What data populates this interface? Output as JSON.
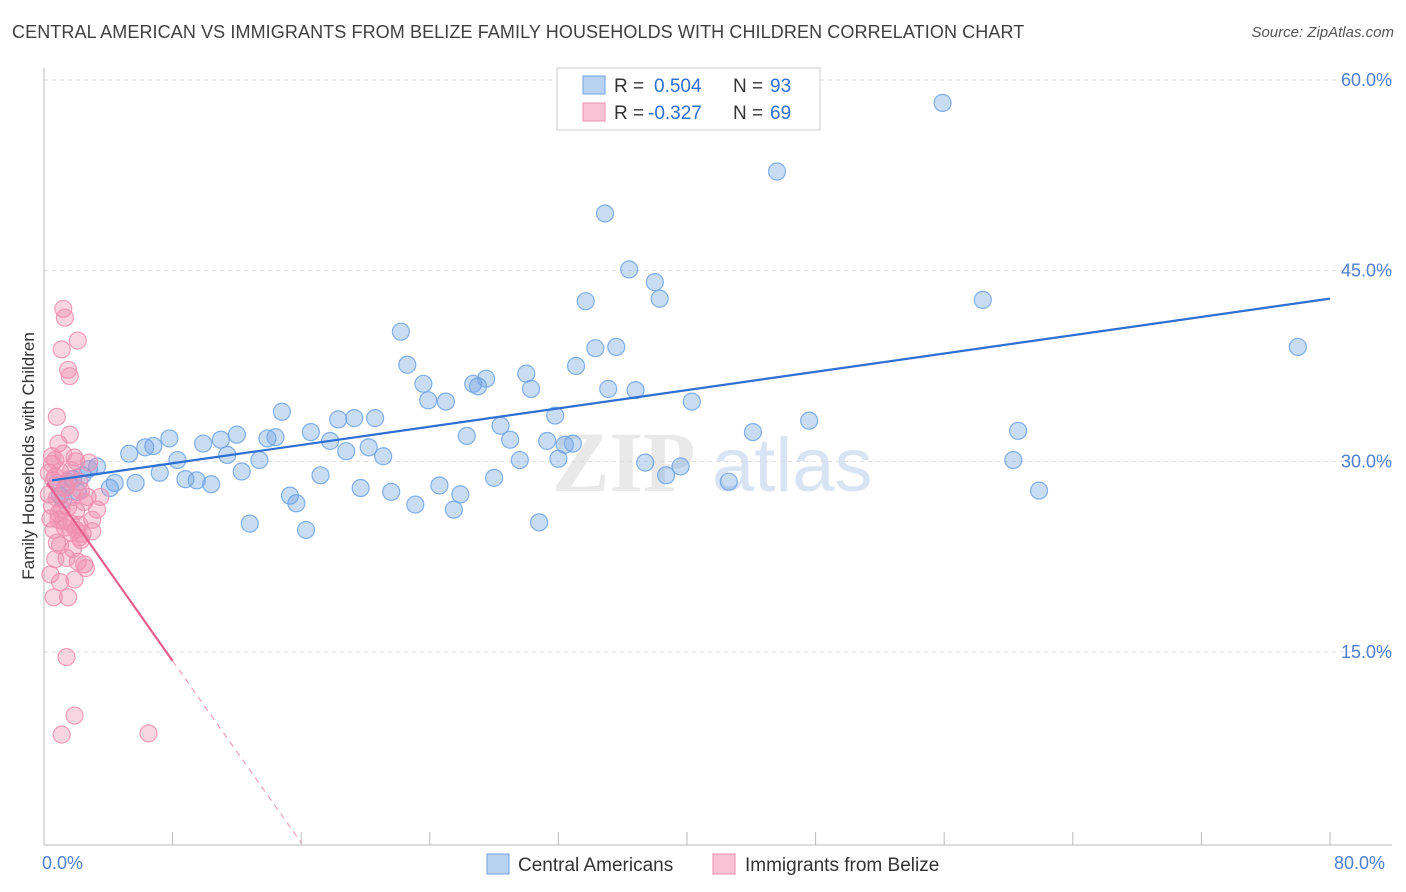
{
  "title": "CENTRAL AMERICAN VS IMMIGRANTS FROM BELIZE FAMILY HOUSEHOLDS WITH CHILDREN CORRELATION CHART",
  "source": "Source: ZipAtlas.com",
  "watermark": {
    "zip": "ZIP",
    "atlas": "atlas"
  },
  "colors": {
    "blue": "#6fa3e3",
    "blue_line": "#2f6fd3",
    "pink": "#f08fb0",
    "pink_line": "#e55f8c",
    "tick": "#4f7fd0",
    "grid": "#dddddd"
  },
  "chart_data": {
    "type": "scatter",
    "title": "CENTRAL AMERICAN VS IMMIGRANTS FROM BELIZE FAMILY HOUSEHOLDS WITH CHILDREN CORRELATION CHART",
    "xlabel": "",
    "ylabel": "Family Households with Children",
    "xlim": [
      0,
      80
    ],
    "ylim": [
      0,
      63
    ],
    "x_tick_labels": [
      "0.0%",
      "80.0%"
    ],
    "y_ticks": [
      15,
      30,
      45,
      60
    ],
    "y_tick_labels": [
      "15.0%",
      "30.0%",
      "45.0%",
      "60.0%"
    ],
    "grid": true,
    "legend": {
      "position": "top-center",
      "entries": [
        {
          "r_label": "R =",
          "r_value": "0.504",
          "n_label": "N =",
          "n_value": "93"
        },
        {
          "r_label": "R =",
          "r_value": "-0.327",
          "n_label": "N =",
          "n_value": "69"
        }
      ]
    },
    "bottom_legend": [
      "Central Americans",
      "Immigrants from Belize"
    ],
    "series": [
      {
        "name": "Central Americans",
        "trend": {
          "x": [
            0.5,
            80
          ],
          "y": [
            28.5,
            42.8
          ]
        },
        "points": [
          [
            0.8,
            28.3
          ],
          [
            1.0,
            27.3
          ],
          [
            1.2,
            27.0
          ],
          [
            1.5,
            28.4
          ],
          [
            1.8,
            28.6
          ],
          [
            2.1,
            27.6
          ],
          [
            2.4,
            28.9
          ],
          [
            2.8,
            29.4
          ],
          [
            3.3,
            29.6
          ],
          [
            4.1,
            27.9
          ],
          [
            4.4,
            28.3
          ],
          [
            5.3,
            30.6
          ],
          [
            5.7,
            28.3
          ],
          [
            6.3,
            31.1
          ],
          [
            6.8,
            31.2
          ],
          [
            7.2,
            29.1
          ],
          [
            7.8,
            31.8
          ],
          [
            8.3,
            30.1
          ],
          [
            8.8,
            28.6
          ],
          [
            9.5,
            28.5
          ],
          [
            9.9,
            31.4
          ],
          [
            10.4,
            28.2
          ],
          [
            11.0,
            31.7
          ],
          [
            11.4,
            30.5
          ],
          [
            12.0,
            32.1
          ],
          [
            12.3,
            29.2
          ],
          [
            12.8,
            25.1
          ],
          [
            13.4,
            30.1
          ],
          [
            13.9,
            31.8
          ],
          [
            14.4,
            31.9
          ],
          [
            14.8,
            33.9
          ],
          [
            15.3,
            27.3
          ],
          [
            15.7,
            26.7
          ],
          [
            16.3,
            24.6
          ],
          [
            16.6,
            32.3
          ],
          [
            17.2,
            28.9
          ],
          [
            17.8,
            31.6
          ],
          [
            18.3,
            33.3
          ],
          [
            18.8,
            30.8
          ],
          [
            19.3,
            33.4
          ],
          [
            19.7,
            27.9
          ],
          [
            20.2,
            31.1
          ],
          [
            20.6,
            33.4
          ],
          [
            21.1,
            30.4
          ],
          [
            21.6,
            27.6
          ],
          [
            22.2,
            40.2
          ],
          [
            22.6,
            37.6
          ],
          [
            23.1,
            26.6
          ],
          [
            23.6,
            36.1
          ],
          [
            23.9,
            34.8
          ],
          [
            24.6,
            28.1
          ],
          [
            25.0,
            34.7
          ],
          [
            25.5,
            26.2
          ],
          [
            25.9,
            27.4
          ],
          [
            26.3,
            32.0
          ],
          [
            26.7,
            36.1
          ],
          [
            27.0,
            35.9
          ],
          [
            27.5,
            36.5
          ],
          [
            28.0,
            28.7
          ],
          [
            28.4,
            32.8
          ],
          [
            29.0,
            31.7
          ],
          [
            29.6,
            30.1
          ],
          [
            30.0,
            36.9
          ],
          [
            30.3,
            35.7
          ],
          [
            30.8,
            25.2
          ],
          [
            31.3,
            31.6
          ],
          [
            31.8,
            33.6
          ],
          [
            32.0,
            30.2
          ],
          [
            32.4,
            31.3
          ],
          [
            32.9,
            31.4
          ],
          [
            33.1,
            37.5
          ],
          [
            33.7,
            42.6
          ],
          [
            34.3,
            38.9
          ],
          [
            34.9,
            49.5
          ],
          [
            35.1,
            35.7
          ],
          [
            35.6,
            39.0
          ],
          [
            36.4,
            45.1
          ],
          [
            36.8,
            35.6
          ],
          [
            37.4,
            29.9
          ],
          [
            38.0,
            44.1
          ],
          [
            38.3,
            42.8
          ],
          [
            38.7,
            28.9
          ],
          [
            39.6,
            29.6
          ],
          [
            40.3,
            34.7
          ],
          [
            42.6,
            28.4
          ],
          [
            44.1,
            32.3
          ],
          [
            45.6,
            52.8
          ],
          [
            47.6,
            33.2
          ],
          [
            55.9,
            58.2
          ],
          [
            58.4,
            42.7
          ],
          [
            60.3,
            30.1
          ],
          [
            60.6,
            32.4
          ],
          [
            61.9,
            27.7
          ],
          [
            78.0,
            39.0
          ]
        ]
      },
      {
        "name": "Immigrants from Belize",
        "trend": {
          "x": [
            0.2,
            8.0
          ],
          "y": [
            28.3,
            14.3
          ]
        },
        "trend_dashed": {
          "x": [
            8.0,
            16.0
          ],
          "y": [
            14.3,
            0.0
          ]
        },
        "points": [
          [
            0.3,
            27.4
          ],
          [
            0.4,
            25.5
          ],
          [
            0.5,
            29.8
          ],
          [
            0.5,
            26.5
          ],
          [
            0.6,
            28.5
          ],
          [
            0.6,
            24.6
          ],
          [
            0.7,
            30.1
          ],
          [
            0.7,
            22.3
          ],
          [
            0.8,
            33.5
          ],
          [
            0.8,
            27.1
          ],
          [
            0.9,
            31.4
          ],
          [
            0.9,
            25.4
          ],
          [
            1.0,
            29.2
          ],
          [
            1.0,
            23.4
          ],
          [
            1.1,
            38.8
          ],
          [
            1.1,
            26.2
          ],
          [
            1.2,
            42.0
          ],
          [
            1.2,
            30.6
          ],
          [
            1.3,
            41.3
          ],
          [
            1.3,
            24.8
          ],
          [
            1.4,
            28.0
          ],
          [
            1.4,
            22.4
          ],
          [
            1.5,
            37.2
          ],
          [
            1.5,
            26.4
          ],
          [
            1.6,
            36.7
          ],
          [
            1.6,
            32.1
          ],
          [
            1.7,
            25.1
          ],
          [
            1.7,
            29.3
          ],
          [
            1.8,
            27.2
          ],
          [
            1.8,
            23.1
          ],
          [
            1.9,
            20.7
          ],
          [
            1.9,
            30.3
          ],
          [
            2.0,
            24.6
          ],
          [
            2.0,
            26.1
          ],
          [
            2.1,
            39.5
          ],
          [
            2.1,
            22.1
          ],
          [
            2.2,
            28.4
          ],
          [
            2.2,
            25.0
          ],
          [
            2.3,
            27.7
          ],
          [
            2.3,
            23.8
          ],
          [
            2.4,
            24.3
          ],
          [
            2.5,
            21.9
          ],
          [
            2.6,
            21.6
          ],
          [
            2.7,
            27.2
          ],
          [
            2.8,
            29.9
          ],
          [
            3.0,
            24.5
          ],
          [
            3.0,
            25.4
          ],
          [
            3.3,
            26.2
          ],
          [
            3.5,
            27.2
          ],
          [
            0.4,
            21.1
          ],
          [
            0.6,
            19.3
          ],
          [
            1.0,
            20.5
          ],
          [
            1.4,
            14.6
          ],
          [
            1.5,
            19.3
          ],
          [
            1.9,
            10.0
          ],
          [
            1.1,
            8.5
          ],
          [
            6.5,
            8.6
          ],
          [
            0.9,
            25.9
          ],
          [
            1.7,
            24.4
          ],
          [
            0.5,
            30.4
          ],
          [
            0.7,
            28.8
          ],
          [
            1.3,
            27.9
          ],
          [
            2.0,
            30.0
          ],
          [
            0.3,
            29.1
          ],
          [
            2.5,
            26.8
          ],
          [
            1.2,
            25.3
          ],
          [
            0.8,
            23.6
          ],
          [
            1.6,
            28.6
          ],
          [
            2.2,
            24.0
          ]
        ]
      }
    ]
  }
}
